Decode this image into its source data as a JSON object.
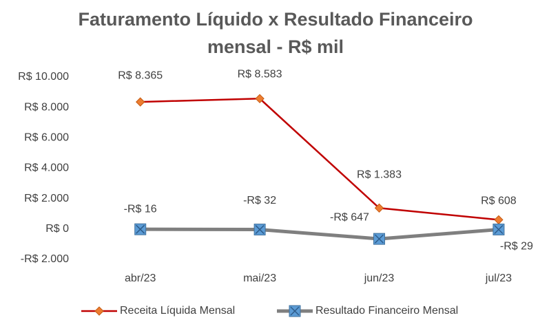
{
  "chart_data": {
    "type": "line",
    "title": "Faturamento Líquido x Resultado Financeiro mensal - R$ mil",
    "categories": [
      "abr/23",
      "mai/23",
      "jun/23",
      "jul/23"
    ],
    "series": [
      {
        "name": "Receita Líquida Mensal",
        "color": "#c00000",
        "marker_color": "#ed7d31",
        "values": [
          8365,
          8583,
          1383,
          608
        ],
        "value_labels": [
          "R$ 8.365",
          "R$ 8.583",
          "R$ 1.383",
          "R$ 608"
        ]
      },
      {
        "name": "Resultado Financeiro Mensal",
        "color": "#7f7f7f",
        "marker_color": "#5b9bd5",
        "values": [
          -16,
          -32,
          -647,
          -29
        ],
        "value_labels": [
          "-R$ 16",
          "-R$ 32",
          "-R$ 647",
          "-R$ 29"
        ]
      }
    ],
    "ylim": [
      -2000,
      10000
    ],
    "yticks": [
      {
        "value": -2000,
        "label": "-R$ 2.000"
      },
      {
        "value": 0,
        "label": "R$ 0"
      },
      {
        "value": 2000,
        "label": "R$ 2.000"
      },
      {
        "value": 4000,
        "label": "R$ 4.000"
      },
      {
        "value": 6000,
        "label": "R$ 6.000"
      },
      {
        "value": 8000,
        "label": "R$ 8.000"
      },
      {
        "value": 10000,
        "label": "R$ 10.000"
      }
    ],
    "grid": false,
    "legend": "bottom"
  }
}
